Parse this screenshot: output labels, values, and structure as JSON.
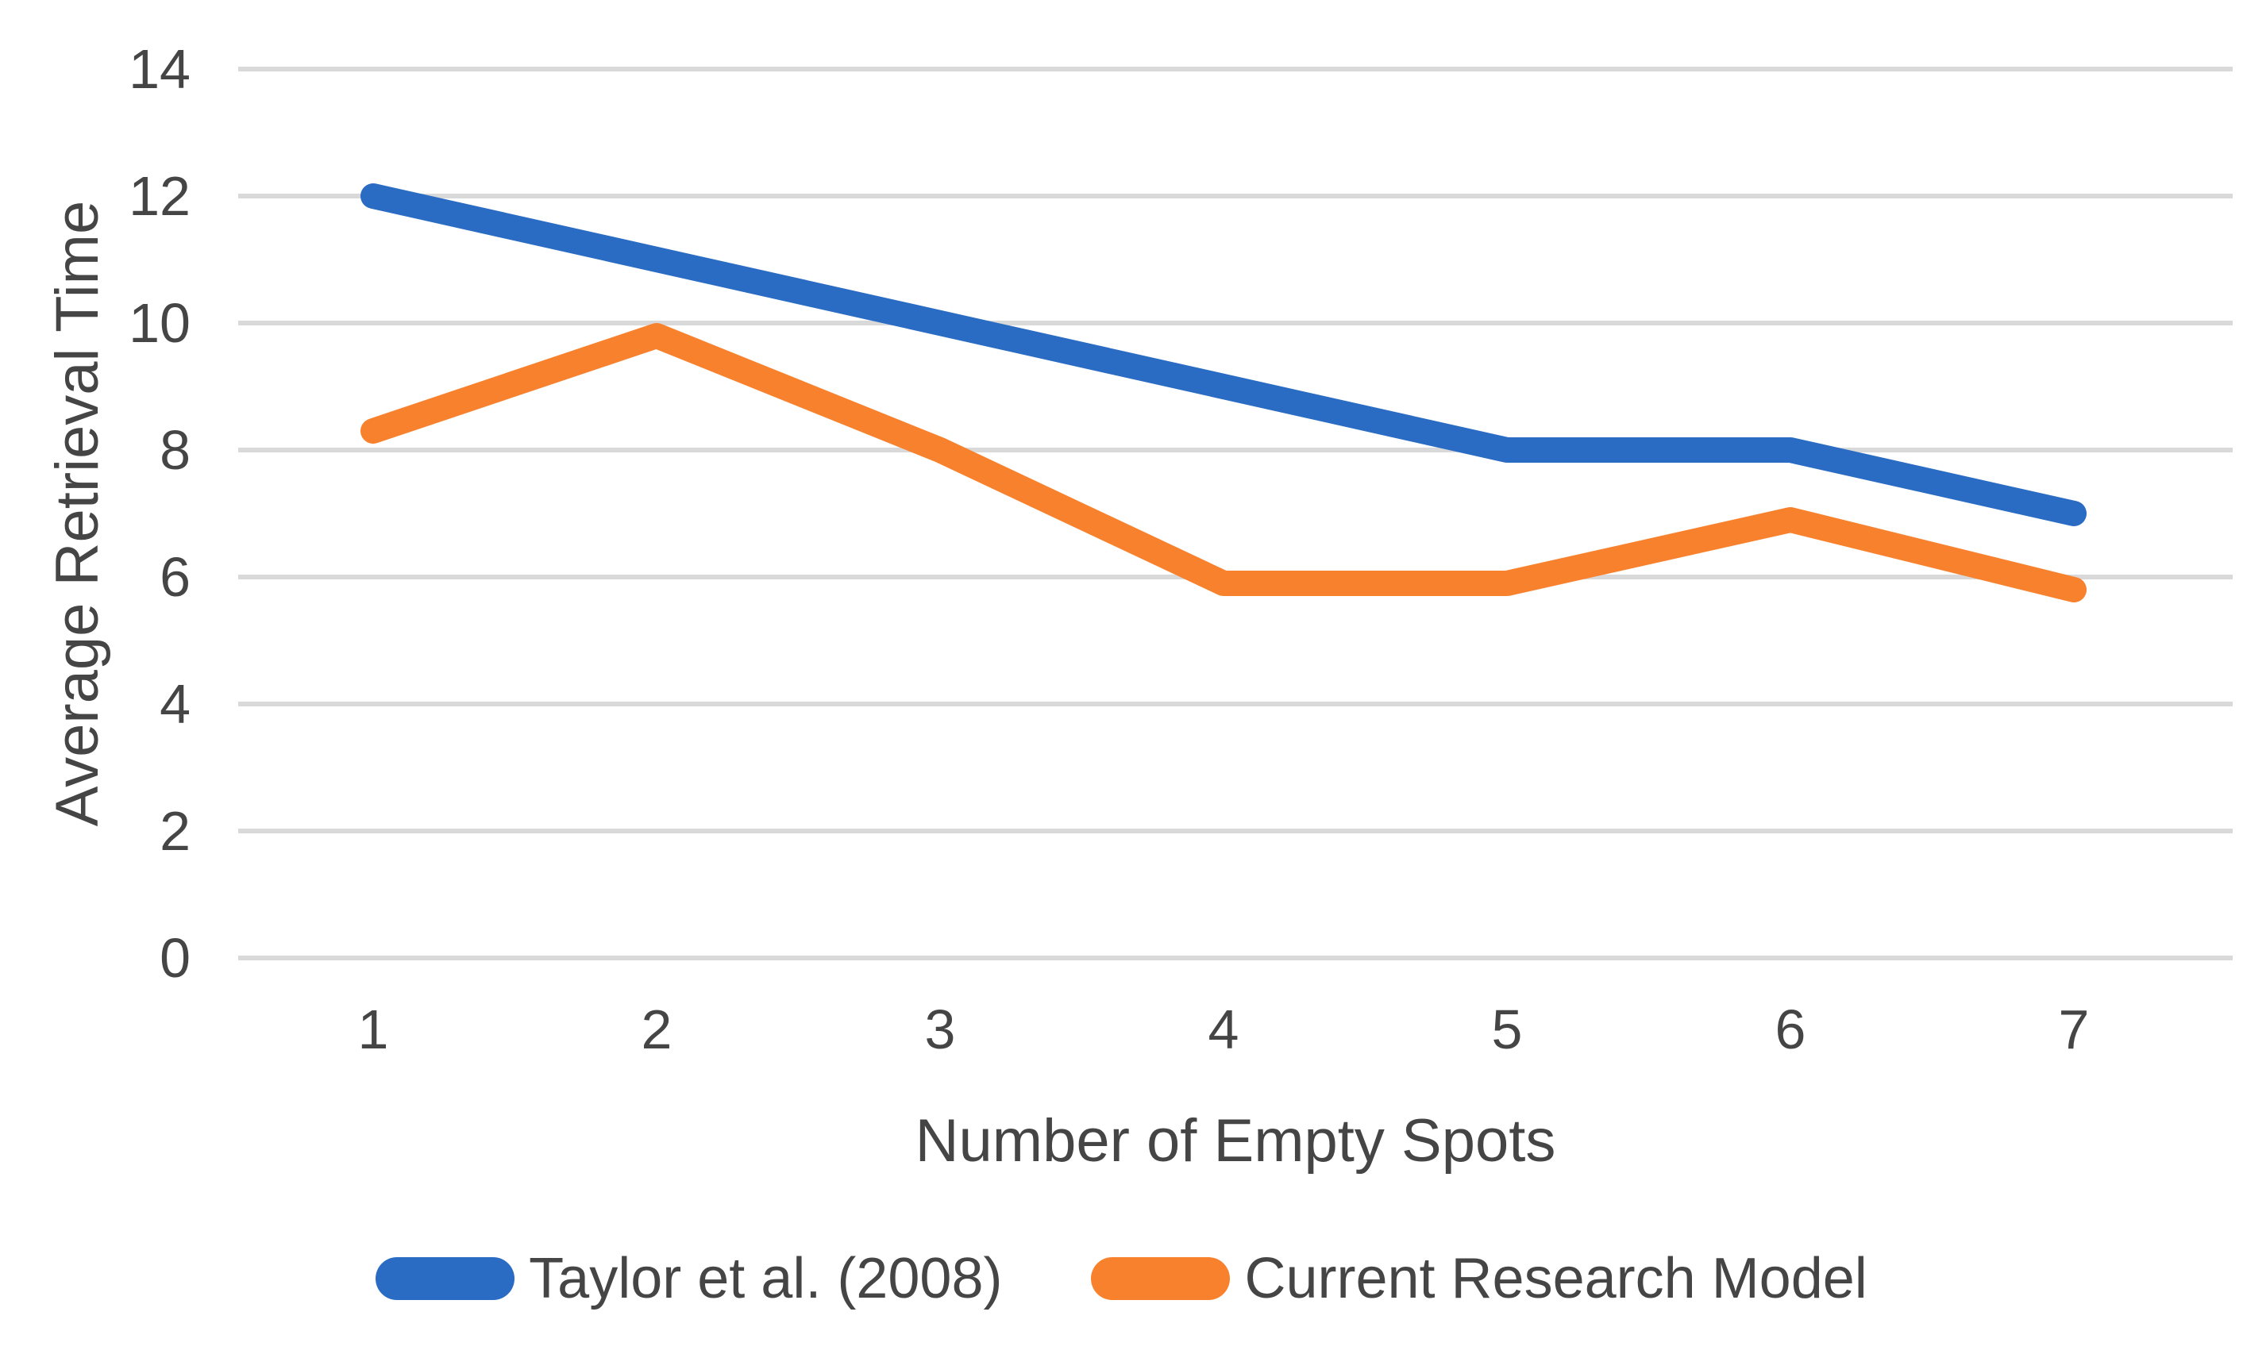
{
  "chart_data": {
    "type": "line",
    "title": "",
    "categories": [
      "1",
      "2",
      "3",
      "4",
      "5",
      "6",
      "7"
    ],
    "x": [
      1,
      2,
      3,
      4,
      5,
      6,
      7
    ],
    "series": [
      {
        "name": "Taylor et al. (2008)",
        "color": "#2A6BC4",
        "values": [
          12,
          11,
          10,
          9,
          8,
          8,
          7
        ]
      },
      {
        "name": "Current Research Model",
        "color": "#F8812D",
        "values": [
          8.3,
          9.8,
          8,
          5.9,
          5.9,
          6.9,
          5.8
        ]
      }
    ],
    "xlabel": "Number of Empty Spots",
    "ylabel": "Average Retrieval Time",
    "ylim": [
      0,
      14
    ],
    "yticks": [
      0,
      2,
      4,
      6,
      8,
      10,
      12,
      14
    ],
    "grid": true,
    "legend_position": "bottom",
    "colors": {
      "gridline": "#D9D9D9",
      "text": "#454545",
      "background": "#FFFFFF"
    }
  }
}
